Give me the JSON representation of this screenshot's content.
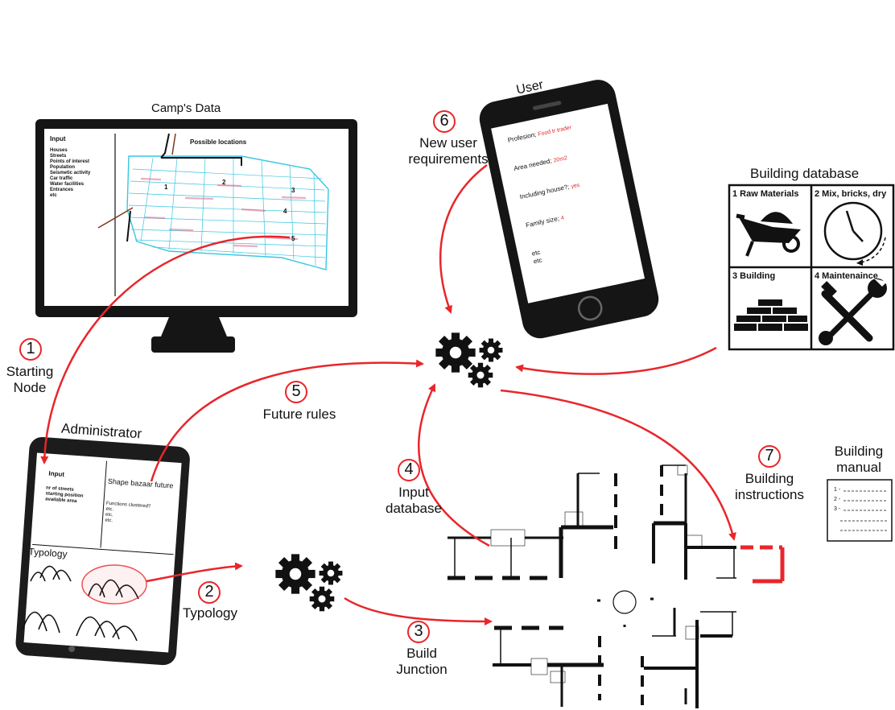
{
  "camp_data": {
    "title": "Camp's Data",
    "input_heading": "Input",
    "input_items": [
      "Houses",
      "Streets",
      "Points of interest",
      "Population",
      "Seismetic activity",
      "Car traffic",
      "Water facilities",
      "Entrances",
      "etc"
    ],
    "map_title": "Possible locations",
    "location_numbers": [
      "1",
      "2",
      "3",
      "4",
      "5"
    ]
  },
  "user_phone": {
    "title": "User",
    "fields": [
      {
        "label": "Profesion;",
        "value": "Food tr trader"
      },
      {
        "label": "Area needed;",
        "value": "20m2"
      },
      {
        "label": "Including house?;",
        "value": "yes"
      },
      {
        "label": "Family size;",
        "value": "4"
      }
    ],
    "etc_lines": [
      "etc",
      "etc"
    ]
  },
  "building_database": {
    "title": "Building database",
    "cells": [
      {
        "label": "1 Raw Materials",
        "icon": "wheelbarrow-icon"
      },
      {
        "label": "2 Mix, bricks, dry",
        "icon": "clock-icon"
      },
      {
        "label": "3 Building",
        "icon": "bricks-icon"
      },
      {
        "label": "4 Maintenaince",
        "icon": "tools-icon"
      }
    ]
  },
  "administrator": {
    "title": "Administrator",
    "input_heading": "Input",
    "input_items": [
      "nr of streets",
      "starting position",
      "available area"
    ],
    "shape_heading": "Shape bazaar future",
    "shape_items": [
      "Functions clustered?",
      "etc.",
      "etc.",
      "etc."
    ],
    "typology_heading": "Typology"
  },
  "steps": [
    {
      "number": "1",
      "label": "Starting Node"
    },
    {
      "number": "2",
      "label": "Typology"
    },
    {
      "number": "3",
      "label": "Build Junction"
    },
    {
      "number": "4",
      "label": "Input database"
    },
    {
      "number": "5",
      "label": "Future rules"
    },
    {
      "number": "6",
      "label": "New user requirements"
    },
    {
      "number": "7",
      "label": "Building instructions"
    }
  ],
  "building_manual": {
    "title": "Building manual",
    "lines": [
      "1 -",
      "2 -",
      "3 -"
    ]
  },
  "colors": {
    "accent": "#e8262b",
    "map_lines": "#38c6e0",
    "map_marks": "#e26a8a",
    "ink": "#111111"
  }
}
